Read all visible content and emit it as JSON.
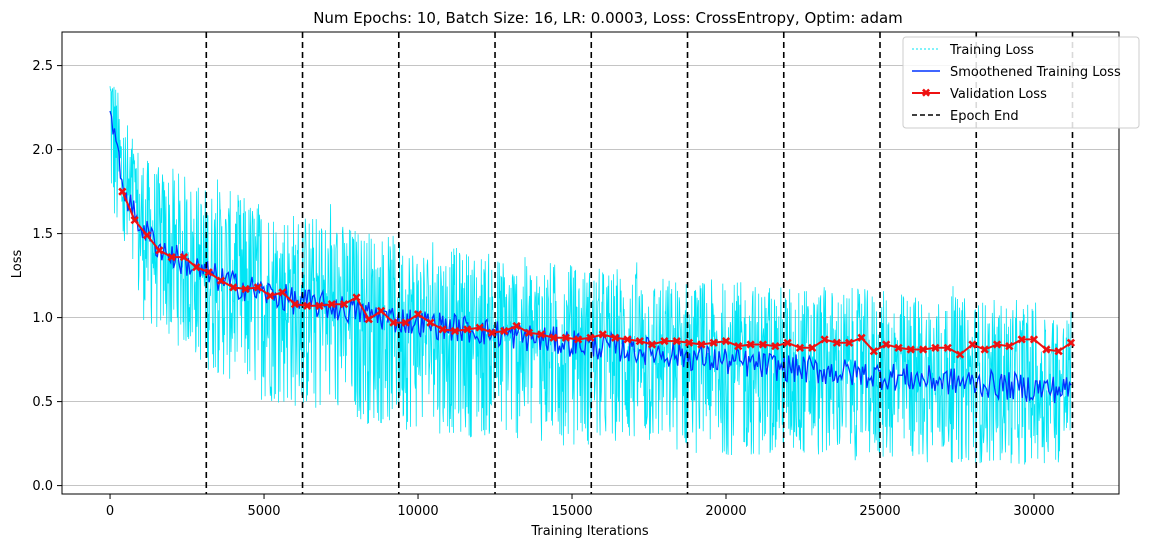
{
  "chart_data": {
    "type": "line",
    "title": "Num Epochs: 10, Batch Size: 16, LR: 0.0003, Loss: CrossEntropy, Optim: adam",
    "xlabel": "Training Iterations",
    "ylabel": "Loss",
    "xlim": [
      -1560,
      32760
    ],
    "ylim": [
      -0.05,
      2.7
    ],
    "x_ticks": [
      0,
      5000,
      10000,
      15000,
      20000,
      25000,
      30000
    ],
    "y_ticks": [
      0.0,
      0.5,
      1.0,
      1.5,
      2.0,
      2.5
    ],
    "y_tick_labels": [
      "0.0",
      "0.5",
      "1.0",
      "1.5",
      "2.0",
      "2.5"
    ],
    "grid": "y-major",
    "legend_position": "top-right",
    "series": [
      {
        "name": "Training Loss",
        "style": "dotted-thin",
        "color": "#00e5f5",
        "x": [
          0,
          400,
          800,
          1200,
          1600,
          2000,
          2500,
          3000,
          4000,
          5000,
          6000,
          7000,
          8000,
          9000,
          10000,
          12000,
          14000,
          16000,
          18000,
          20000,
          22000,
          24000,
          26000,
          28000,
          30000,
          31200
        ],
        "values": [
          2.3,
          1.8,
          1.6,
          1.5,
          1.42,
          1.37,
          1.32,
          1.27,
          1.2,
          1.15,
          1.1,
          1.07,
          1.04,
          1.0,
          0.97,
          0.92,
          0.87,
          0.83,
          0.79,
          0.74,
          0.7,
          0.67,
          0.64,
          0.61,
          0.58,
          0.57
        ],
        "spread_upper": [
          2.55,
          2.25,
          2.1,
          1.95,
          1.9,
          1.9,
          1.85,
          1.8,
          1.75,
          1.7,
          1.65,
          1.6,
          1.55,
          1.5,
          1.45,
          1.4,
          1.35,
          1.3,
          1.25,
          1.22,
          1.2,
          1.18,
          1.15,
          1.12,
          1.1,
          1.05
        ],
        "spread_lower": [
          1.6,
          1.25,
          1.05,
          0.95,
          0.9,
          0.85,
          0.8,
          0.7,
          0.6,
          0.5,
          0.45,
          0.4,
          0.37,
          0.35,
          0.32,
          0.28,
          0.25,
          0.22,
          0.2,
          0.18,
          0.16,
          0.15,
          0.14,
          0.13,
          0.12,
          0.12
        ]
      },
      {
        "name": "Smoothened Training Loss",
        "style": "solid",
        "color": "#0033ff",
        "x": [
          0,
          200,
          400,
          800,
          1200,
          1600,
          2000,
          2500,
          3000,
          4000,
          5000,
          6000,
          7000,
          8000,
          9000,
          10000,
          12000,
          14000,
          16000,
          18000,
          20000,
          22000,
          24000,
          26000,
          28000,
          30000,
          31200
        ],
        "values": [
          2.3,
          2.0,
          1.8,
          1.6,
          1.5,
          1.42,
          1.37,
          1.32,
          1.27,
          1.2,
          1.15,
          1.1,
          1.07,
          1.04,
          1.0,
          0.97,
          0.92,
          0.87,
          0.83,
          0.79,
          0.74,
          0.7,
          0.67,
          0.64,
          0.61,
          0.58,
          0.57
        ]
      },
      {
        "name": "Validation Loss",
        "style": "solid-markers",
        "color": "#ee1111",
        "x": [
          400,
          800,
          1200,
          1600,
          2000,
          2400,
          2800,
          3200,
          3600,
          4000,
          4400,
          4800,
          5200,
          5600,
          6000,
          6400,
          6800,
          7200,
          7600,
          8000,
          8400,
          8800,
          9200,
          9600,
          10000,
          10400,
          10800,
          11200,
          11600,
          12000,
          12400,
          12800,
          13200,
          13600,
          14000,
          14400,
          14800,
          15200,
          15600,
          16000,
          16400,
          16800,
          17200,
          17600,
          18000,
          18400,
          18800,
          19200,
          19600,
          20000,
          20400,
          20800,
          21200,
          21600,
          22000,
          22400,
          22800,
          23200,
          23600,
          24000,
          24400,
          24800,
          25200,
          25600,
          26000,
          26400,
          26800,
          27200,
          27600,
          28000,
          28400,
          28800,
          29200,
          29600,
          30000,
          30400,
          30800,
          31200
        ],
        "values": [
          1.75,
          1.58,
          1.49,
          1.4,
          1.36,
          1.36,
          1.3,
          1.27,
          1.22,
          1.18,
          1.17,
          1.18,
          1.13,
          1.15,
          1.08,
          1.07,
          1.07,
          1.08,
          1.08,
          1.12,
          0.99,
          1.04,
          0.97,
          0.97,
          1.02,
          0.97,
          0.93,
          0.92,
          0.93,
          0.94,
          0.91,
          0.92,
          0.95,
          0.91,
          0.9,
          0.88,
          0.88,
          0.87,
          0.88,
          0.9,
          0.88,
          0.87,
          0.86,
          0.84,
          0.86,
          0.86,
          0.85,
          0.84,
          0.85,
          0.86,
          0.83,
          0.84,
          0.84,
          0.83,
          0.85,
          0.82,
          0.82,
          0.87,
          0.85,
          0.85,
          0.88,
          0.8,
          0.84,
          0.82,
          0.81,
          0.81,
          0.82,
          0.82,
          0.78,
          0.84,
          0.81,
          0.84,
          0.83,
          0.87,
          0.87,
          0.81,
          0.8,
          0.85
        ]
      },
      {
        "name": "Epoch End",
        "style": "dashed-vertical",
        "color": "#000000",
        "x": [
          3125,
          6250,
          9375,
          12500,
          15625,
          18750,
          21875,
          25000,
          28125,
          31250
        ]
      }
    ]
  }
}
